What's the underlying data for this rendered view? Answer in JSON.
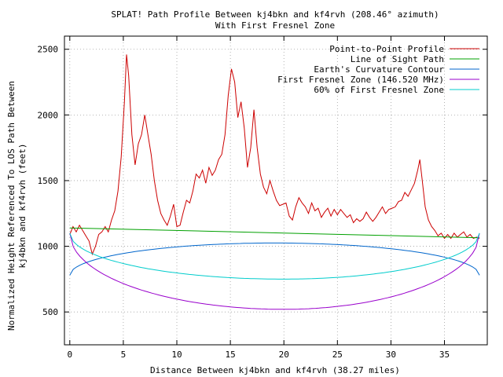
{
  "chart_data": {
    "type": "line",
    "title": "SPLAT! Path Profile Between kj4bkn and kf4rvh (208.46° azimuth)",
    "subtitle": "With First Fresnel Zone",
    "xlabel": "Distance Between kj4bkn and kf4rvh (38.27 miles)",
    "ylabel_line1": "Normalized Height Referenced To LOS Path Between",
    "ylabel_line2": "kj4bkn and kf4rvh (feet)",
    "xlim": [
      -0.5,
      39
    ],
    "ylim": [
      250,
      2600
    ],
    "xticks": [
      0,
      5,
      10,
      15,
      20,
      25,
      30,
      35
    ],
    "yticks": [
      500,
      1000,
      1500,
      2000,
      2500
    ],
    "grid": true,
    "legend_position": "top-right",
    "colors": {
      "profile": "#cc0000",
      "los": "#00a000",
      "earth": "#0066cc",
      "fresnel": "#9900cc",
      "fresnel60": "#00cccc"
    },
    "series": [
      {
        "key": "profile",
        "name": "Point-to-Point Profile",
        "points": [
          [
            0,
            1090
          ],
          [
            0.3,
            1150
          ],
          [
            0.6,
            1110
          ],
          [
            0.9,
            1160
          ],
          [
            1.2,
            1120
          ],
          [
            1.5,
            1080
          ],
          [
            1.8,
            1040
          ],
          [
            2.1,
            940
          ],
          [
            2.4,
            1000
          ],
          [
            2.7,
            1090
          ],
          [
            3.0,
            1110
          ],
          [
            3.3,
            1150
          ],
          [
            3.6,
            1110
          ],
          [
            3.9,
            1200
          ],
          [
            4.2,
            1270
          ],
          [
            4.5,
            1420
          ],
          [
            4.8,
            1680
          ],
          [
            5.1,
            2100
          ],
          [
            5.3,
            2460
          ],
          [
            5.5,
            2300
          ],
          [
            5.8,
            1850
          ],
          [
            6.1,
            1620
          ],
          [
            6.4,
            1780
          ],
          [
            6.7,
            1850
          ],
          [
            7.0,
            2000
          ],
          [
            7.3,
            1850
          ],
          [
            7.6,
            1700
          ],
          [
            7.9,
            1500
          ],
          [
            8.2,
            1350
          ],
          [
            8.5,
            1250
          ],
          [
            8.8,
            1200
          ],
          [
            9.1,
            1160
          ],
          [
            9.4,
            1230
          ],
          [
            9.7,
            1320
          ],
          [
            10.0,
            1150
          ],
          [
            10.3,
            1160
          ],
          [
            10.6,
            1260
          ],
          [
            10.9,
            1350
          ],
          [
            11.2,
            1330
          ],
          [
            11.5,
            1420
          ],
          [
            11.8,
            1550
          ],
          [
            12.1,
            1520
          ],
          [
            12.4,
            1580
          ],
          [
            12.7,
            1480
          ],
          [
            13.0,
            1600
          ],
          [
            13.3,
            1540
          ],
          [
            13.6,
            1580
          ],
          [
            13.9,
            1660
          ],
          [
            14.2,
            1700
          ],
          [
            14.5,
            1850
          ],
          [
            14.8,
            2150
          ],
          [
            15.1,
            2350
          ],
          [
            15.4,
            2250
          ],
          [
            15.7,
            1980
          ],
          [
            16.0,
            2100
          ],
          [
            16.3,
            1900
          ],
          [
            16.6,
            1600
          ],
          [
            16.9,
            1750
          ],
          [
            17.2,
            2040
          ],
          [
            17.5,
            1750
          ],
          [
            17.8,
            1550
          ],
          [
            18.1,
            1450
          ],
          [
            18.4,
            1400
          ],
          [
            18.7,
            1500
          ],
          [
            19.0,
            1420
          ],
          [
            19.3,
            1350
          ],
          [
            19.6,
            1310
          ],
          [
            19.9,
            1320
          ],
          [
            20.2,
            1330
          ],
          [
            20.5,
            1230
          ],
          [
            20.8,
            1200
          ],
          [
            21.1,
            1300
          ],
          [
            21.4,
            1370
          ],
          [
            21.7,
            1330
          ],
          [
            22.0,
            1300
          ],
          [
            22.3,
            1250
          ],
          [
            22.6,
            1330
          ],
          [
            22.9,
            1270
          ],
          [
            23.2,
            1290
          ],
          [
            23.5,
            1220
          ],
          [
            23.8,
            1260
          ],
          [
            24.1,
            1290
          ],
          [
            24.4,
            1230
          ],
          [
            24.7,
            1280
          ],
          [
            25.0,
            1240
          ],
          [
            25.3,
            1280
          ],
          [
            25.6,
            1250
          ],
          [
            25.9,
            1220
          ],
          [
            26.2,
            1240
          ],
          [
            26.5,
            1180
          ],
          [
            26.8,
            1210
          ],
          [
            27.1,
            1190
          ],
          [
            27.4,
            1210
          ],
          [
            27.7,
            1260
          ],
          [
            28.0,
            1220
          ],
          [
            28.3,
            1190
          ],
          [
            28.6,
            1220
          ],
          [
            28.9,
            1260
          ],
          [
            29.2,
            1300
          ],
          [
            29.5,
            1250
          ],
          [
            29.8,
            1280
          ],
          [
            30.1,
            1290
          ],
          [
            30.4,
            1300
          ],
          [
            30.7,
            1340
          ],
          [
            31.0,
            1350
          ],
          [
            31.3,
            1410
          ],
          [
            31.6,
            1380
          ],
          [
            31.9,
            1430
          ],
          [
            32.2,
            1480
          ],
          [
            32.5,
            1580
          ],
          [
            32.7,
            1660
          ],
          [
            32.9,
            1520
          ],
          [
            33.2,
            1300
          ],
          [
            33.5,
            1200
          ],
          [
            33.8,
            1150
          ],
          [
            34.1,
            1120
          ],
          [
            34.4,
            1080
          ],
          [
            34.7,
            1100
          ],
          [
            35.0,
            1060
          ],
          [
            35.3,
            1090
          ],
          [
            35.6,
            1060
          ],
          [
            35.9,
            1100
          ],
          [
            36.2,
            1070
          ],
          [
            36.5,
            1090
          ],
          [
            36.8,
            1110
          ],
          [
            37.1,
            1070
          ],
          [
            37.4,
            1090
          ],
          [
            37.7,
            1060
          ],
          [
            38.0,
            1070
          ],
          [
            38.27,
            1060
          ]
        ]
      },
      {
        "key": "los",
        "name": "Line of Sight Path",
        "from": [
          0,
          1140
        ],
        "to": [
          38.27,
          1065
        ]
      },
      {
        "key": "earth",
        "name": "Earth's Curvature Contour",
        "ends": 780,
        "peak": 1025,
        "peak_x": 19.1
      },
      {
        "key": "fresnel",
        "name": "First Fresnel Zone (146.520 MHz)",
        "ends": 1100,
        "min": 520,
        "min_x": 20.0
      },
      {
        "key": "fresnel60",
        "name": "60% of First Fresnel Zone",
        "ends": 1100,
        "min": 750,
        "min_x": 20.0
      }
    ]
  }
}
